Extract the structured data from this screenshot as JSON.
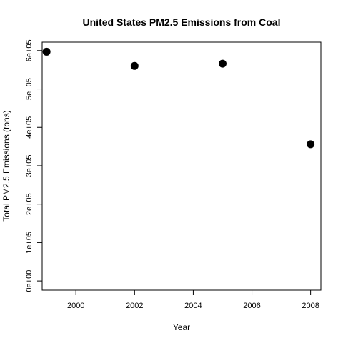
{
  "chart_data": {
    "type": "scatter",
    "title": "United States PM2.5 Emissions from Coal",
    "xlabel": "Year",
    "ylabel": "Total PM2.5 Emissions (tons)",
    "x": [
      1999,
      2002,
      2005,
      2008
    ],
    "y": [
      597000,
      560000,
      566000,
      356000
    ],
    "xlim": [
      1998.85,
      2008.35
    ],
    "ylim": [
      -24000,
      622000
    ],
    "xticks": [
      2000,
      2002,
      2004,
      2006,
      2008
    ],
    "xtick_labels": [
      "2000",
      "2002",
      "2004",
      "2006",
      "2008"
    ],
    "yticks": [
      0,
      100000,
      200000,
      300000,
      400000,
      500000,
      600000
    ],
    "ytick_labels": [
      "0e+00",
      "1e+05",
      "2e+05",
      "3e+05",
      "4e+05",
      "5e+05",
      "6e+05"
    ],
    "grid": false,
    "marker_color": "#000000"
  }
}
